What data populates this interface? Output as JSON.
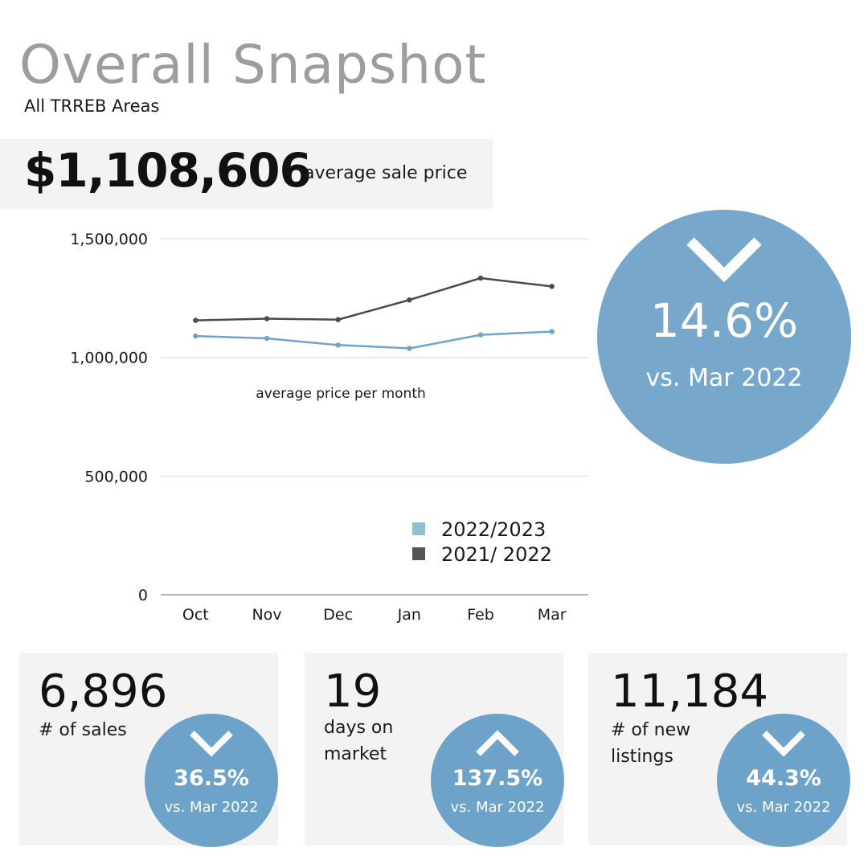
{
  "header": {
    "title": "Overall Snapshot",
    "subtitle": "All TRREB Areas"
  },
  "headline": {
    "value": "$1,108,606",
    "label": "average sale price"
  },
  "headline_change": {
    "direction": "down",
    "percent": "14.6%",
    "comparison": "vs. Mar 2022",
    "icon": "chevron-down-icon"
  },
  "chart_data": {
    "type": "line",
    "title": "",
    "annotation": "average price per month",
    "categories": [
      "Oct",
      "Nov",
      "Dec",
      "Jan",
      "Feb",
      "Mar"
    ],
    "y_ticks": [
      "0",
      "500,000",
      "1,000,000",
      "1,500,000"
    ],
    "ylim": [
      0,
      1500000
    ],
    "grid": true,
    "legend_placement": "bottom-right",
    "series": [
      {
        "name": "2022/2023",
        "color": "#6fa3c9",
        "legend_color": "#8fbfd3",
        "values": [
          1090000,
          1080000,
          1052000,
          1038000,
          1095000,
          1108606
        ]
      },
      {
        "name": "2021/ 2022",
        "color": "#4a4a4a",
        "legend_color": "#555555",
        "values": [
          1156000,
          1163000,
          1159000,
          1242000,
          1334000,
          1299000
        ]
      }
    ]
  },
  "stats": [
    {
      "value": "6,896",
      "label": "# of sales",
      "direction": "up-arrow-hidden",
      "change_direction": "down",
      "percent": "36.5%",
      "comparison": "vs. Mar 2022",
      "icon": "chevron-down-icon"
    },
    {
      "value": "19",
      "label": "days on\nmarket",
      "change_direction": "up",
      "percent": "137.5%",
      "comparison": "vs. Mar 2022",
      "icon": "chevron-up-icon"
    },
    {
      "value": "11,184",
      "label": "# of new\nlistings",
      "change_direction": "down",
      "percent": "44.3%",
      "comparison": "vs. Mar 2022",
      "icon": "chevron-down-icon"
    }
  ],
  "colors": {
    "accent": "#77a8cc",
    "card_bg": "#f3f3f3",
    "title_gray": "#9d9d9d"
  }
}
